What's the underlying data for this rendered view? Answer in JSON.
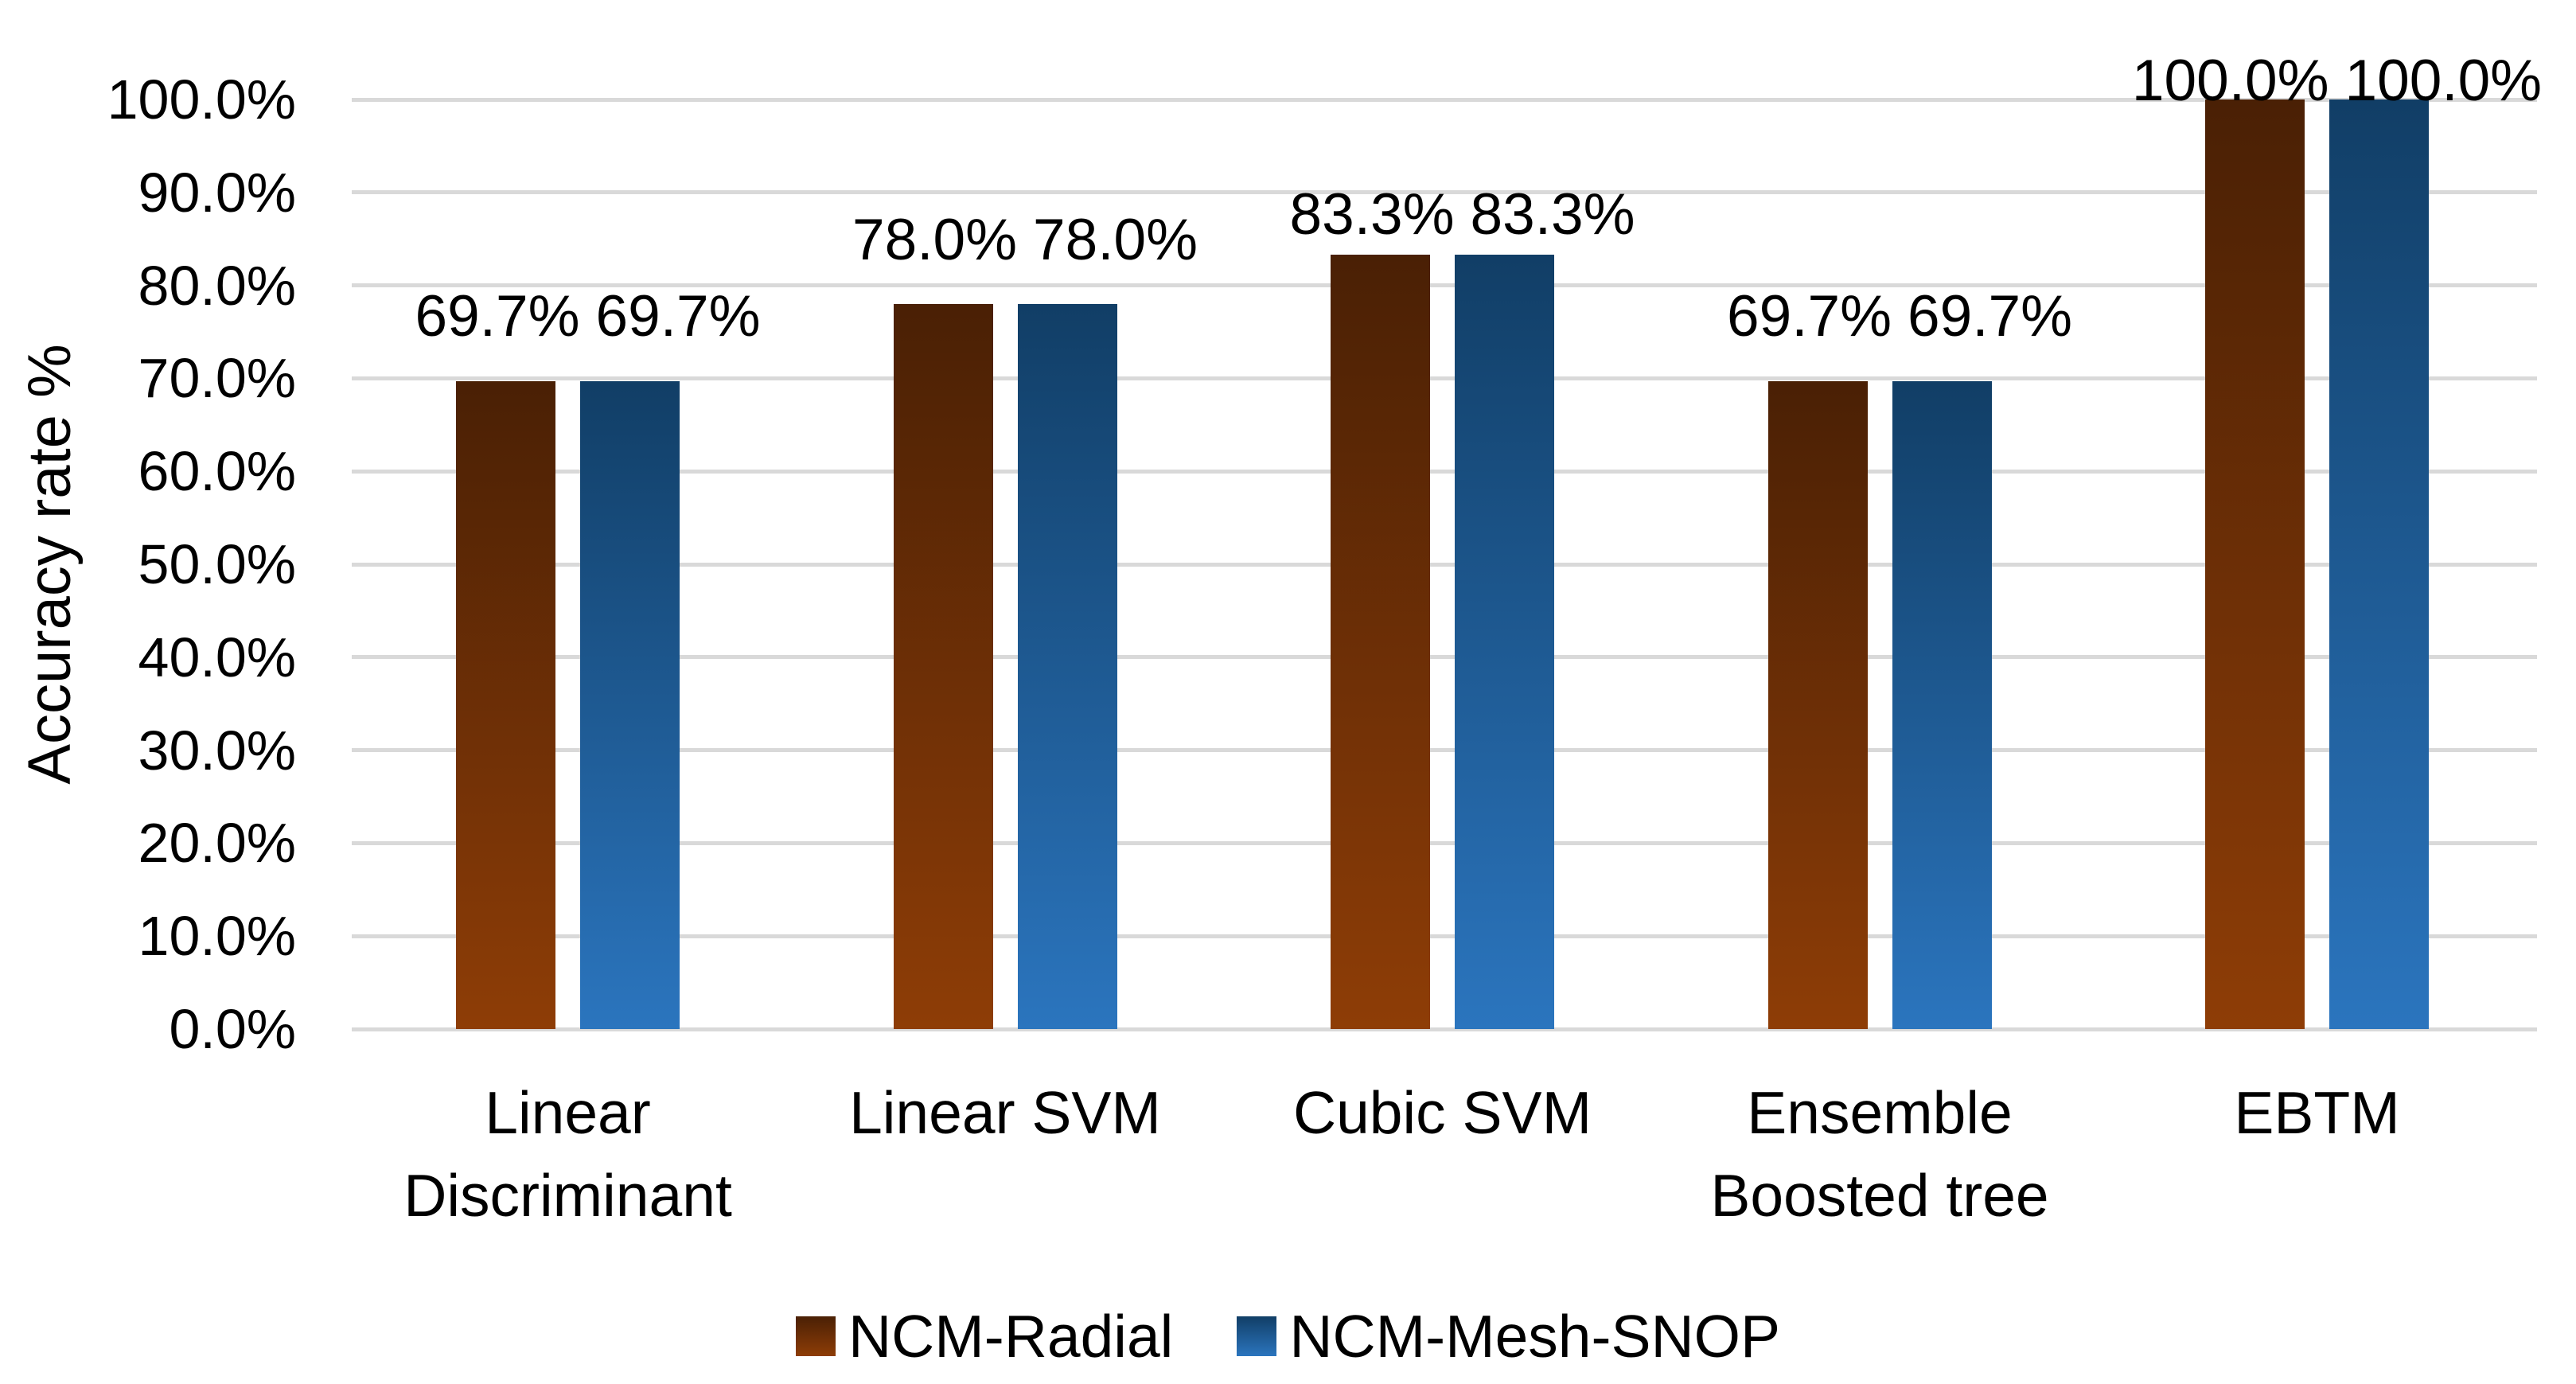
{
  "chart_data": {
    "type": "bar",
    "title": "",
    "ylabel": "Accuracy rate %",
    "xlabel": "",
    "ylim": [
      0,
      100
    ],
    "grid": true,
    "gridline_color": "#D9D9D9",
    "legend_position": "bottom",
    "categories": [
      "Linear Discriminant",
      "Linear SVM",
      "Cubic SVM",
      "Ensemble Boosted tree",
      "EBTM"
    ],
    "category_lines": [
      [
        "Linear",
        "Discriminant"
      ],
      [
        "Linear SVM"
      ],
      [
        "Cubic SVM"
      ],
      [
        "Ensemble",
        "Boosted tree"
      ],
      [
        "EBTM"
      ]
    ],
    "y_ticks": [
      "0.0%",
      "10.0%",
      "20.0%",
      "30.0%",
      "40.0%",
      "50.0%",
      "60.0%",
      "70.0%",
      "80.0%",
      "90.0%",
      "100.0%"
    ],
    "series": [
      {
        "name": "NCM-Radial",
        "values": [
          69.7,
          78.0,
          83.3,
          69.7,
          100.0
        ],
        "color_top": "#4A2005",
        "color_bottom": "#8E3D06"
      },
      {
        "name": "NCM-Mesh-SNOP",
        "values": [
          69.7,
          78.0,
          83.3,
          69.7,
          100.0
        ],
        "color_top": "#113E66",
        "color_bottom": "#2B75BE"
      }
    ],
    "data_labels": [
      [
        "69.7%",
        "69.7%"
      ],
      [
        "78.0%",
        "78.0%"
      ],
      [
        "83.3%",
        "83.3%"
      ],
      [
        "69.7%",
        "69.7%"
      ],
      [
        "100.0%",
        "100.0%"
      ]
    ]
  }
}
